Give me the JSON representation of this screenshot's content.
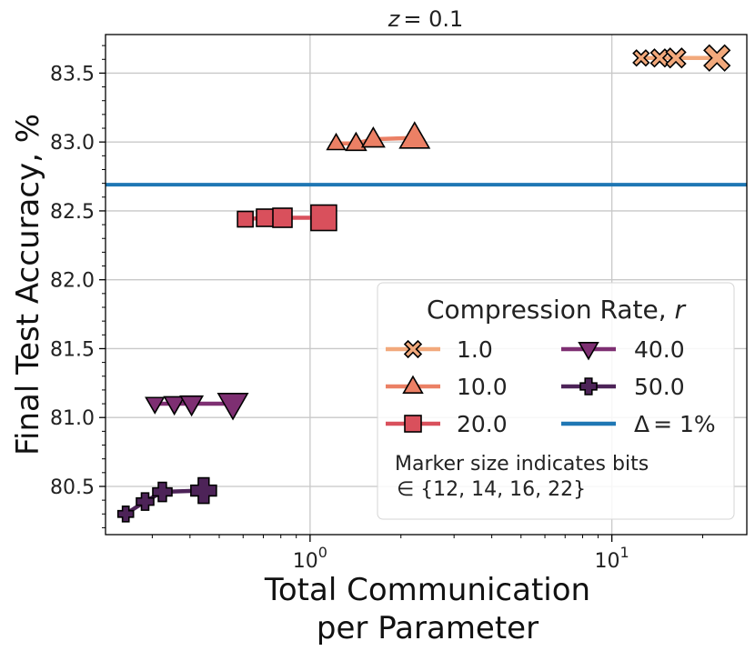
{
  "chart_data": {
    "type": "scatter",
    "title_prefix": "z",
    "title_value": "= 0.1",
    "xlabel_line1": "Total Communication",
    "xlabel_line2": "per Parameter",
    "ylabel": "Final Test Accuracy, %",
    "xscale": "log",
    "xlim": [
      0.21,
      28
    ],
    "ylim": [
      80.15,
      83.78
    ],
    "grid": true,
    "yticks": [
      {
        "value": 80.5,
        "label": "80.5"
      },
      {
        "value": 81.0,
        "label": "81.0"
      },
      {
        "value": 81.5,
        "label": "81.5"
      },
      {
        "value": 82.0,
        "label": "82.0"
      },
      {
        "value": 82.5,
        "label": "82.5"
      },
      {
        "value": 83.0,
        "label": "83.0"
      },
      {
        "value": 83.5,
        "label": "83.5"
      }
    ],
    "xticks": [
      {
        "value": 1,
        "base": "10",
        "exp": "0"
      },
      {
        "value": 10,
        "base": "10",
        "exp": "1"
      }
    ],
    "reference_line": {
      "y": 82.69,
      "label_prefix": "Δ",
      "label_value": "= 1%",
      "color": "#1f77b4"
    },
    "marker_bits": [
      12,
      14,
      16,
      22
    ],
    "series": [
      {
        "name": "1.0",
        "marker": "x",
        "color": "#f2a97c",
        "points": [
          [
            12.5,
            83.61
          ],
          [
            14.4,
            83.61
          ],
          [
            16.3,
            83.61
          ],
          [
            22.3,
            83.61
          ]
        ]
      },
      {
        "name": "10.0",
        "marker": "triangle-up",
        "color": "#eb8065",
        "points": [
          [
            1.22,
            82.99
          ],
          [
            1.42,
            82.99
          ],
          [
            1.62,
            83.02
          ],
          [
            2.22,
            83.03
          ]
        ]
      },
      {
        "name": "20.0",
        "marker": "square",
        "color": "#d9505c",
        "points": [
          [
            0.61,
            82.44
          ],
          [
            0.71,
            82.45
          ],
          [
            0.81,
            82.45
          ],
          [
            1.11,
            82.45
          ]
        ]
      },
      {
        "name": "40.0",
        "marker": "triangle-down",
        "color": "#7e2f72",
        "points": [
          [
            0.306,
            81.1
          ],
          [
            0.355,
            81.1
          ],
          [
            0.405,
            81.1
          ],
          [
            0.555,
            81.1
          ]
        ]
      },
      {
        "name": "50.0",
        "marker": "plus",
        "color": "#4d2358",
        "points": [
          [
            0.245,
            80.3
          ],
          [
            0.284,
            80.39
          ],
          [
            0.324,
            80.46
          ],
          [
            0.444,
            80.47
          ]
        ]
      }
    ],
    "legend": {
      "title_prefix": "Compression Rate, ",
      "title_var": "r",
      "placement": "lower-right",
      "note_line1": "Marker size indicates bits",
      "note_line2": "∈ {12, 14, 16, 22}"
    }
  }
}
